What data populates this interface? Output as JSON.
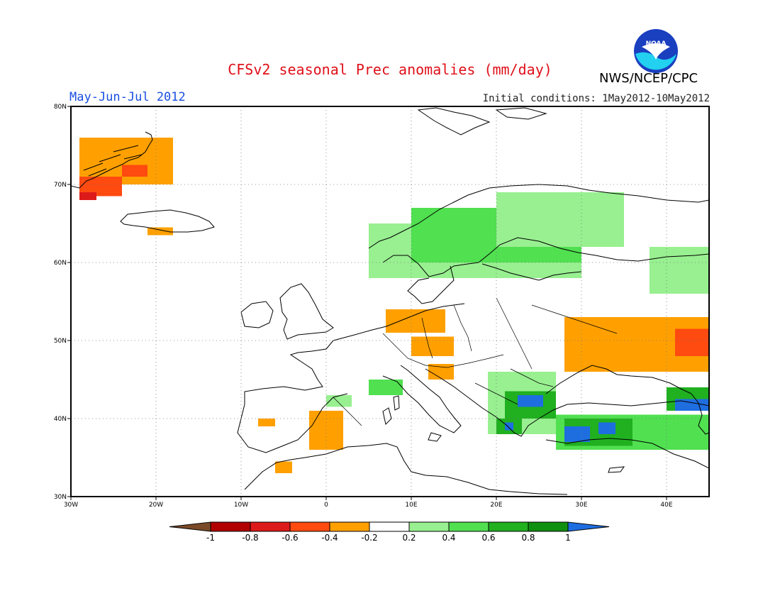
{
  "header": {
    "title": "CFSv2 seasonal Prec anomalies (mm/day)",
    "period": "May-Jun-Jul 2012",
    "initial_conditions": "Initial conditions: 1May2012-10May2012",
    "agency": "NWS/NCEP/CPC",
    "logo_text": "NOAA"
  },
  "map": {
    "lon_range": [
      -30,
      45
    ],
    "lat_range": [
      30,
      80
    ],
    "lon_ticks": [
      {
        "value": -30,
        "label": "30W"
      },
      {
        "value": -20,
        "label": "20W"
      },
      {
        "value": -10,
        "label": "10W"
      },
      {
        "value": 0,
        "label": "0"
      },
      {
        "value": 10,
        "label": "10E"
      },
      {
        "value": 20,
        "label": "20E"
      },
      {
        "value": 30,
        "label": "30E"
      },
      {
        "value": 40,
        "label": "40E"
      }
    ],
    "lat_ticks": [
      {
        "value": 30,
        "label": "30N"
      },
      {
        "value": 40,
        "label": "40N"
      },
      {
        "value": 50,
        "label": "50N"
      },
      {
        "value": 60,
        "label": "60N"
      },
      {
        "value": 70,
        "label": "70N"
      },
      {
        "value": 80,
        "label": "80N"
      }
    ],
    "grid": "dotted"
  },
  "anomaly_regions": [
    {
      "level": "-0.4",
      "lon": [
        -29,
        -18
      ],
      "lat": [
        70,
        76
      ],
      "region": "Greenland east coast"
    },
    {
      "level": "-0.6",
      "lon": [
        -29,
        -24
      ],
      "lat": [
        68.5,
        71
      ]
    },
    {
      "level": "-0.8",
      "lon": [
        -29,
        -27
      ],
      "lat": [
        68,
        69
      ]
    },
    {
      "level": "-0.6",
      "lon": [
        -24,
        -21
      ],
      "lat": [
        71,
        72.5
      ]
    },
    {
      "level": "-0.4",
      "lon": [
        -21,
        -18
      ],
      "lat": [
        63.5,
        64.5
      ],
      "region": "Iceland south"
    },
    {
      "level": "0.2",
      "lon": [
        5,
        30
      ],
      "lat": [
        58,
        65
      ],
      "region": "Scandinavia"
    },
    {
      "level": "0.4",
      "lon": [
        10,
        30
      ],
      "lat": [
        60,
        67
      ],
      "region": "Sweden / Finland"
    },
    {
      "level": "0.2",
      "lon": [
        20,
        35
      ],
      "lat": [
        62,
        69
      ],
      "region": "Finland / Karelia"
    },
    {
      "level": "0.2",
      "lon": [
        38,
        45
      ],
      "lat": [
        56,
        62
      ],
      "region": "Russia north"
    },
    {
      "level": "-0.4",
      "lon": [
        7,
        14
      ],
      "lat": [
        51,
        54
      ],
      "region": "Northern Germany"
    },
    {
      "level": "-0.4",
      "lon": [
        10,
        15
      ],
      "lat": [
        48,
        50.5
      ],
      "region": "Czechia"
    },
    {
      "level": "-0.4",
      "lon": [
        12,
        15
      ],
      "lat": [
        45,
        47
      ],
      "region": "Slovenia"
    },
    {
      "level": "-0.4",
      "lon": [
        28,
        45
      ],
      "lat": [
        46,
        53
      ],
      "region": "Ukraine / Russia"
    },
    {
      "level": "-0.6",
      "lon": [
        41,
        45
      ],
      "lat": [
        48,
        51.5
      ],
      "region": "Russia south"
    },
    {
      "level": "0.4",
      "lon": [
        5,
        9
      ],
      "lat": [
        43,
        45
      ],
      "region": "Alps west"
    },
    {
      "level": "0.2",
      "lon": [
        0,
        3
      ],
      "lat": [
        41.5,
        43
      ],
      "region": "Catalonia"
    },
    {
      "level": "-0.4",
      "lon": [
        -2,
        2
      ],
      "lat": [
        36,
        41
      ],
      "region": "Spain east"
    },
    {
      "level": "-0.4",
      "lon": [
        -8,
        -6
      ],
      "lat": [
        39,
        40
      ],
      "region": "Spain west"
    },
    {
      "level": "-0.4",
      "lon": [
        -6,
        -4
      ],
      "lat": [
        33,
        34.5
      ],
      "region": "Morocco"
    },
    {
      "level": "0.2",
      "lon": [
        19,
        27
      ],
      "lat": [
        38,
        46
      ],
      "region": "Balkans"
    },
    {
      "level": "0.6",
      "lon": [
        21,
        27
      ],
      "lat": [
        40,
        43.5
      ],
      "region": "Bulgaria / Greece"
    },
    {
      "level": "1",
      "lon": [
        22.5,
        25.5
      ],
      "lat": [
        41.5,
        43
      ],
      "region": "Bulgaria"
    },
    {
      "level": "0.6",
      "lon": [
        20,
        23
      ],
      "lat": [
        38,
        40
      ],
      "region": "Greece"
    },
    {
      "level": "1",
      "lon": [
        21,
        22
      ],
      "lat": [
        38.5,
        39.5
      ],
      "region": "Greece core"
    },
    {
      "level": "0.4",
      "lon": [
        27,
        45
      ],
      "lat": [
        36,
        40.5
      ],
      "region": "Turkey"
    },
    {
      "level": "0.6",
      "lon": [
        28,
        36
      ],
      "lat": [
        36.5,
        40
      ],
      "region": "Turkey west"
    },
    {
      "level": "1",
      "lon": [
        28,
        31
      ],
      "lat": [
        37,
        39
      ],
      "region": "Turkey west core"
    },
    {
      "level": "1",
      "lon": [
        32,
        34
      ],
      "lat": [
        38,
        39.5
      ],
      "region": "Turkey central"
    },
    {
      "level": "0.6",
      "lon": [
        40,
        45
      ],
      "lat": [
        41,
        44
      ],
      "region": "Caucasus"
    },
    {
      "level": "1",
      "lon": [
        41,
        45
      ],
      "lat": [
        41,
        42.5
      ],
      "region": "Caucasus core"
    }
  ],
  "colorbar": {
    "labels": [
      "-1",
      "-0.8",
      "-0.6",
      "-0.4",
      "-0.2",
      "0.2",
      "0.4",
      "0.6",
      "0.8",
      "1"
    ],
    "colors": {
      "below_-1": "#7a4a28",
      "-1_-0.8": "#b00000",
      "-0.8_-0.6": "#dd1a1a",
      "-0.6_-0.4": "#ff4a10",
      "-0.4_-0.2": "#ffa000",
      "-0.2_0.2": "#ffffff",
      "0.2_0.4": "#98f090",
      "0.4_0.6": "#50e050",
      "0.6_0.8": "#20b020",
      "0.8_1": "#109010",
      "above_1": "#1e6ee0"
    }
  }
}
